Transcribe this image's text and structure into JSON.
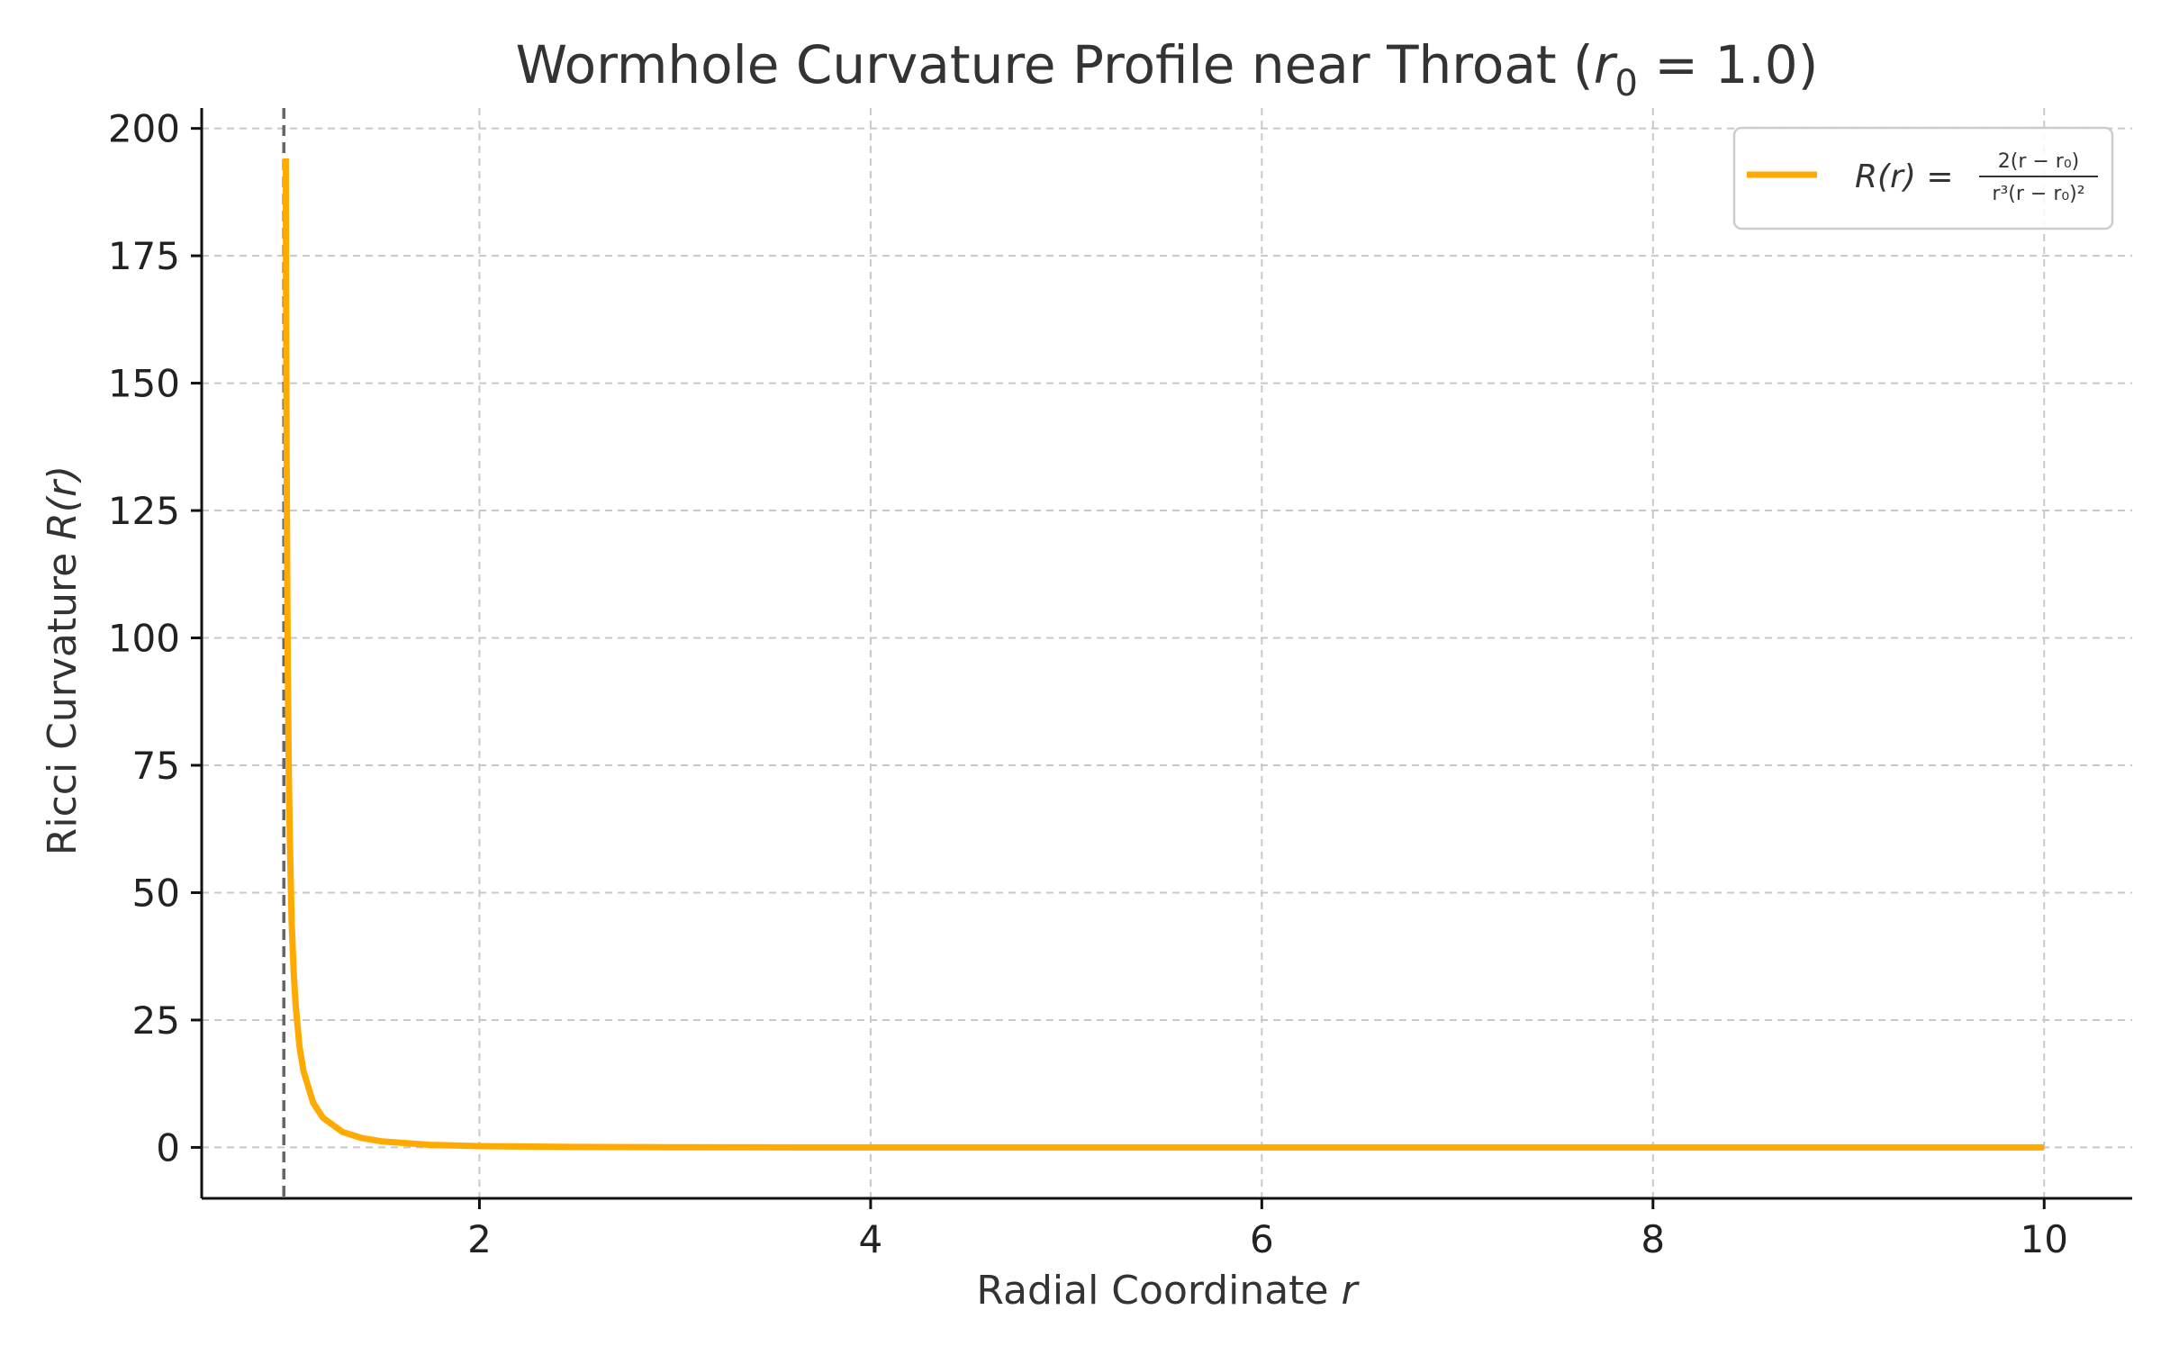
{
  "chart_data": {
    "type": "line",
    "title": {
      "prefix": "Wormhole Curvature Profile near Throat (",
      "var": "r",
      "sub": "0",
      "suffix": " = 1.0)"
    },
    "xlabel": {
      "text": "Radial Coordinate ",
      "var": "r"
    },
    "ylabel": {
      "text": "Ricci Curvature ",
      "var": "R(r)"
    },
    "xlim": [
      0.58,
      10.45
    ],
    "ylim": [
      -10,
      204
    ],
    "xticks": [
      2,
      4,
      6,
      8,
      10
    ],
    "yticks": [
      0,
      25,
      50,
      75,
      100,
      125,
      150,
      175,
      200
    ],
    "grid": true,
    "legend_position": "top-right",
    "throat_line": {
      "x": 1.0,
      "style": "dashed",
      "color": "#666666"
    },
    "series": [
      {
        "name": "R(r) = 2(r − r0) / r³(r − r0)²",
        "legend": {
          "lhs": "R(r) =",
          "numerator": "2(r − r₀)",
          "denominator": "r³(r − r₀)²"
        },
        "color": "#FFAA00",
        "x": [
          1.01,
          1.012,
          1.015,
          1.02,
          1.025,
          1.03,
          1.04,
          1.05,
          1.06,
          1.08,
          1.1,
          1.15,
          1.2,
          1.3,
          1.4,
          1.5,
          1.75,
          2,
          2.5,
          3,
          4,
          5,
          6,
          7,
          8,
          9,
          10
        ],
        "y": [
          194.1,
          161.2,
          128.4,
          94.2,
          74.3,
          61.0,
          44.3,
          34.6,
          28.0,
          19.8,
          15.0,
          8.77,
          5.79,
          3.03,
          1.82,
          1.19,
          0.5,
          0.25,
          0.085,
          0.037,
          0.0104,
          0.004,
          0.0019,
          0.001,
          0.0006,
          0.0003,
          0.0002
        ]
      }
    ]
  }
}
